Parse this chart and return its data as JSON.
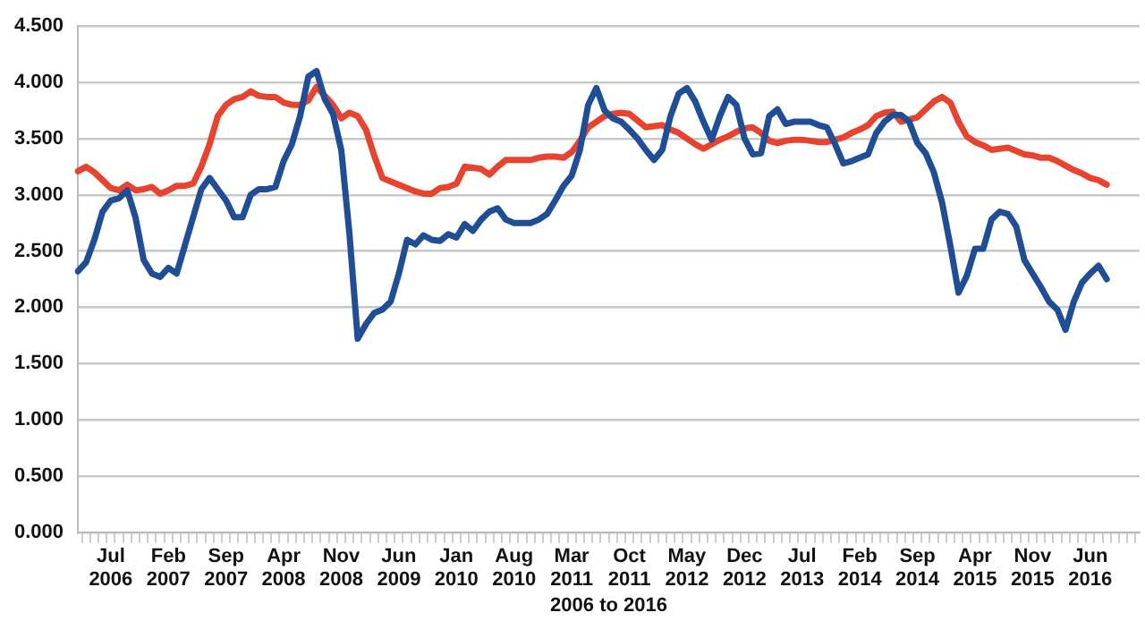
{
  "chart_data": {
    "type": "line",
    "xlabel": "2006 to 2016",
    "categories": [
      null,
      null,
      null,
      null,
      "Jul 2006",
      null,
      null,
      null,
      null,
      null,
      null,
      "Feb 2007",
      null,
      null,
      null,
      null,
      null,
      null,
      "Sep 2007",
      null,
      null,
      null,
      null,
      null,
      null,
      "Apr 2008",
      null,
      null,
      null,
      null,
      null,
      null,
      "Nov 2008",
      null,
      null,
      null,
      null,
      null,
      null,
      "Jun 2009",
      null,
      null,
      null,
      null,
      null,
      null,
      "Jan 2010",
      null,
      null,
      null,
      null,
      null,
      null,
      "Aug 2010",
      null,
      null,
      null,
      null,
      null,
      null,
      "Mar 2011",
      null,
      null,
      null,
      null,
      null,
      null,
      "Oct 2011",
      null,
      null,
      null,
      null,
      null,
      null,
      "May 2012",
      null,
      null,
      null,
      null,
      null,
      null,
      "Dec 2012",
      null,
      null,
      null,
      null,
      null,
      null,
      "Jul 2013",
      null,
      null,
      null,
      null,
      null,
      null,
      "Feb 2014",
      null,
      null,
      null,
      null,
      null,
      null,
      "Sep 2014",
      null,
      null,
      null,
      null,
      null,
      null,
      "Apr 2015",
      null,
      null,
      null,
      null,
      null,
      null,
      "Nov 2015",
      null,
      null,
      null,
      null,
      null,
      null,
      "Jun 2016",
      null,
      null,
      null,
      null,
      null,
      null
    ],
    "series": [
      {
        "color": "#1f4e96",
        "values": [
          2.32,
          2.4,
          2.6,
          2.85,
          2.95,
          2.97,
          3.04,
          2.8,
          2.42,
          2.3,
          2.27,
          2.35,
          2.3,
          2.55,
          2.8,
          3.05,
          3.15,
          3.05,
          2.95,
          2.8,
          2.8,
          3.0,
          3.05,
          3.05,
          3.07,
          3.3,
          3.45,
          3.7,
          4.05,
          4.1,
          3.85,
          3.72,
          3.4,
          2.65,
          1.72,
          1.85,
          1.95,
          1.98,
          2.05,
          2.3,
          2.6,
          2.56,
          2.64,
          2.6,
          2.59,
          2.65,
          2.62,
          2.74,
          2.68,
          2.78,
          2.85,
          2.88,
          2.78,
          2.75,
          2.75,
          2.75,
          2.78,
          2.83,
          2.95,
          3.08,
          3.17,
          3.4,
          3.8,
          3.95,
          3.75,
          3.68,
          3.65,
          3.58,
          3.5,
          3.4,
          3.31,
          3.4,
          3.7,
          3.9,
          3.95,
          3.83,
          3.65,
          3.49,
          3.7,
          3.87,
          3.8,
          3.5,
          3.36,
          3.37,
          3.7,
          3.76,
          3.63,
          3.65,
          3.65,
          3.65,
          3.62,
          3.6,
          3.45,
          3.28,
          3.3,
          3.33,
          3.36,
          3.55,
          3.65,
          3.71,
          3.71,
          3.65,
          3.46,
          3.37,
          3.2,
          2.93,
          2.55,
          2.13,
          2.28,
          2.52,
          2.52,
          2.78,
          2.85,
          2.83,
          2.72,
          2.42,
          2.3,
          2.18,
          2.05,
          1.98,
          1.8,
          2.05,
          2.22,
          2.3,
          2.37,
          2.25,
          null,
          null,
          null,
          null
        ]
      },
      {
        "color": "#e8432e",
        "values": [
          3.21,
          3.25,
          3.2,
          3.13,
          3.06,
          3.04,
          3.09,
          3.04,
          3.05,
          3.07,
          3.01,
          3.04,
          3.08,
          3.08,
          3.1,
          3.25,
          3.45,
          3.7,
          3.8,
          3.85,
          3.87,
          3.92,
          3.88,
          3.87,
          3.87,
          3.82,
          3.8,
          3.8,
          3.84,
          3.96,
          3.88,
          3.8,
          3.68,
          3.73,
          3.7,
          3.58,
          3.35,
          3.15,
          3.12,
          3.09,
          3.06,
          3.03,
          3.01,
          3.01,
          3.06,
          3.07,
          3.1,
          3.25,
          3.24,
          3.23,
          3.18,
          3.25,
          3.31,
          3.31,
          3.31,
          3.31,
          3.33,
          3.34,
          3.34,
          3.33,
          3.38,
          3.48,
          3.6,
          3.65,
          3.7,
          3.72,
          3.73,
          3.72,
          3.66,
          3.6,
          3.61,
          3.62,
          3.58,
          3.55,
          3.5,
          3.45,
          3.41,
          3.45,
          3.49,
          3.52,
          3.56,
          3.59,
          3.6,
          3.55,
          3.48,
          3.46,
          3.48,
          3.49,
          3.49,
          3.48,
          3.47,
          3.47,
          3.49,
          3.51,
          3.55,
          3.58,
          3.62,
          3.7,
          3.73,
          3.74,
          3.65,
          3.67,
          3.69,
          3.76,
          3.83,
          3.87,
          3.82,
          3.65,
          3.52,
          3.47,
          3.44,
          3.4,
          3.41,
          3.42,
          3.39,
          3.36,
          3.35,
          3.33,
          3.33,
          3.3,
          3.26,
          3.22,
          3.19,
          3.15,
          3.13,
          3.09,
          null,
          null,
          null,
          null
        ]
      }
    ],
    "ylim": [
      0,
      4.5
    ],
    "yticks": [
      {
        "value": 0,
        "label": "0.000"
      },
      {
        "value": 0.5,
        "label": "0.500"
      },
      {
        "value": 1,
        "label": "1.000"
      },
      {
        "value": 1.5,
        "label": "1.500"
      },
      {
        "value": 2,
        "label": "2.000"
      },
      {
        "value": 2.5,
        "label": "2.500"
      },
      {
        "value": 3,
        "label": "3.000"
      },
      {
        "value": 3.5,
        "label": "3.500"
      },
      {
        "value": 4,
        "label": "4.000"
      },
      {
        "value": 4.5,
        "label": "4.500"
      }
    ],
    "grid": "y",
    "legend": false,
    "marker": "none",
    "line_style": "solid"
  }
}
